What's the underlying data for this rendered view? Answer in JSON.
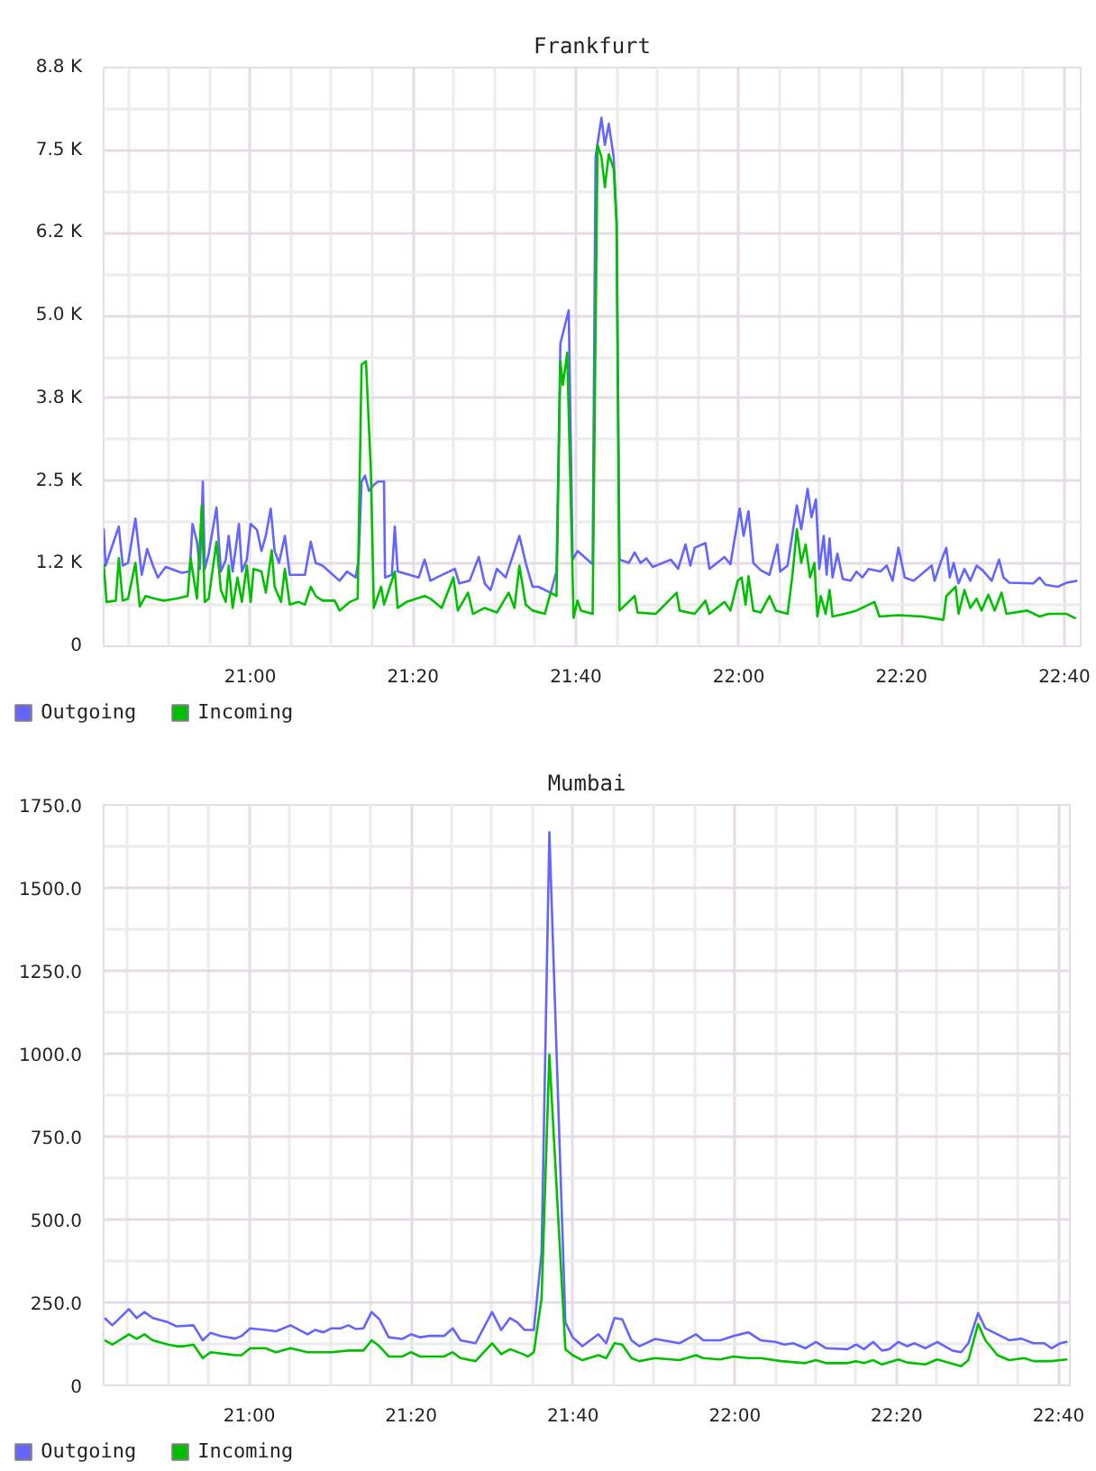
{
  "chart_data": [
    {
      "type": "line",
      "title": "Frankfurt",
      "xlim": [
        20.7,
        22.7
      ],
      "ylim": [
        0,
        8750
      ],
      "xticks": [
        {
          "value": 20.75,
          "label": null
        },
        {
          "value": 20.8333,
          "label": null
        },
        {
          "value": 20.9167,
          "label": null
        },
        {
          "value": 21,
          "label": "21:00"
        },
        {
          "value": 21.0833,
          "label": null
        },
        {
          "value": 21.1667,
          "label": null
        },
        {
          "value": 21.25,
          "label": null
        },
        {
          "value": 21.3333,
          "label": "21:20"
        },
        {
          "value": 21.4167,
          "label": null
        },
        {
          "value": 21.5,
          "label": null
        },
        {
          "value": 21.5833,
          "label": null
        },
        {
          "value": 21.6667,
          "label": "21:40"
        },
        {
          "value": 21.75,
          "label": null
        },
        {
          "value": 21.8333,
          "label": null
        },
        {
          "value": 21.9167,
          "label": null
        },
        {
          "value": 22,
          "label": "22:00"
        },
        {
          "value": 22.0833,
          "label": null
        },
        {
          "value": 22.1667,
          "label": null
        },
        {
          "value": 22.25,
          "label": null
        },
        {
          "value": 22.3333,
          "label": "22:20"
        },
        {
          "value": 22.4167,
          "label": null
        },
        {
          "value": 22.5,
          "label": null
        },
        {
          "value": 22.5833,
          "label": null
        },
        {
          "value": 22.6667,
          "label": "22:40"
        }
      ],
      "yticks": [
        0,
        {
          "value": 625,
          "label": null
        },
        {
          "value": 1250,
          "label": "1.2 K"
        },
        {
          "value": 1875,
          "label": null
        },
        {
          "value": 2500,
          "label": "2.5 K"
        },
        {
          "value": 3125,
          "label": null
        },
        {
          "value": 3750,
          "label": "3.8 K"
        },
        {
          "value": 4375,
          "label": null
        },
        {
          "value": 5000,
          "label": "5.0 K"
        },
        {
          "value": 5625,
          "label": null
        },
        {
          "value": 6250,
          "label": "6.2 K"
        },
        {
          "value": 6875,
          "label": null
        },
        {
          "value": 7500,
          "label": "7.5 K"
        },
        {
          "value": 8125,
          "label": null
        },
        {
          "value": 8750,
          "label": "8.8 K"
        }
      ],
      "grid": true,
      "legend": "bottom left",
      "series": [
        {
          "name": "Outgoing",
          "color": "#6464ff",
          "x": [
            20.7,
            20.704,
            20.731,
            20.739,
            20.75,
            20.765,
            20.778,
            20.789,
            20.801,
            20.811,
            20.827,
            20.86,
            20.876,
            20.882,
            20.891,
            20.897,
            20.903,
            20.907,
            20.915,
            20.931,
            20.94,
            20.95,
            20.956,
            20.964,
            20.977,
            20.983,
            20.993,
            21.001,
            21.014,
            21.023,
            21.032,
            21.042,
            21.05,
            21.059,
            21.071,
            21.081,
            21.112,
            21.124,
            21.134,
            21.148,
            21.183,
            21.198,
            21.216,
            21.222,
            21.228,
            21.235,
            21.243,
            21.253,
            21.262,
            21.274,
            21.276,
            21.29,
            21.296,
            21.302,
            21.345,
            21.357,
            21.369,
            21.382,
            21.419,
            21.428,
            21.449,
            21.468,
            21.48,
            21.492,
            21.505,
            21.523,
            21.551,
            21.564,
            21.578,
            21.59,
            21.615,
            21.627,
            21.635,
            21.652,
            21.66,
            21.67,
            21.701,
            21.707,
            21.719,
            21.726,
            21.734,
            21.744,
            21.75,
            21.756,
            21.775,
            21.787,
            21.799,
            21.811,
            21.824,
            21.861,
            21.876,
            21.891,
            21.901,
            21.91,
            21.932,
            21.94,
            21.971,
            21.983,
            22.002,
            22.01,
            22.02,
            22.03,
            22.045,
            22.063,
            22.079,
            22.085,
            22.1,
            22.119,
            22.128,
            22.141,
            22.149,
            22.158,
            22.165,
            22.174,
            22.18,
            22.186,
            22.192,
            22.202,
            22.213,
            22.229,
            22.241,
            22.253,
            22.266,
            22.29,
            22.303,
            22.315,
            22.327,
            22.34,
            22.358,
            22.395,
            22.401,
            22.413,
            22.425,
            22.432,
            22.44,
            22.45,
            22.462,
            22.474,
            22.487,
            22.499,
            22.518,
            22.533,
            22.542,
            22.554,
            22.603,
            22.616,
            22.628,
            22.653,
            22.671,
            22.693
          ],
          "values": [
            1780,
            1220,
            1810,
            1220,
            1260,
            1930,
            1080,
            1470,
            1220,
            1040,
            1200,
            1110,
            1130,
            1850,
            1580,
            1170,
            2490,
            1170,
            1400,
            2100,
            1130,
            1310,
            1670,
            1130,
            1850,
            1130,
            1310,
            1850,
            1760,
            1440,
            1670,
            2080,
            1440,
            1260,
            1670,
            1080,
            1080,
            1580,
            1260,
            1220,
            990,
            1130,
            1040,
            1310,
            2490,
            2580,
            2350,
            2440,
            2490,
            2490,
            1040,
            1080,
            1810,
            1130,
            1040,
            1310,
            990,
            1040,
            1170,
            950,
            990,
            1350,
            950,
            850,
            1170,
            1040,
            1670,
            1260,
            900,
            900,
            810,
            1130,
            4580,
            5080,
            1310,
            1440,
            1240,
            7400,
            7990,
            7580,
            7900,
            7400,
            6400,
            1310,
            1260,
            1420,
            1260,
            1330,
            1200,
            1310,
            1170,
            1540,
            1220,
            1490,
            1560,
            1170,
            1350,
            1240,
            2080,
            1670,
            2040,
            1260,
            1150,
            1080,
            1540,
            1130,
            1220,
            2130,
            1770,
            2380,
            1950,
            2220,
            1170,
            1670,
            1080,
            1630,
            1040,
            1400,
            1020,
            990,
            1130,
            1040,
            1170,
            1130,
            1220,
            990,
            1490,
            1040,
            990,
            1220,
            990,
            1260,
            1490,
            1040,
            1260,
            950,
            1170,
            990,
            1220,
            1150,
            990,
            1310,
            1040,
            960,
            950,
            1040,
            930,
            900,
            960,
            990
          ]
        },
        {
          "name": "Incoming",
          "color": "#00c000",
          "x": [
            20.7,
            20.706,
            20.725,
            20.731,
            20.739,
            20.75,
            20.765,
            20.774,
            20.786,
            20.805,
            20.823,
            20.848,
            20.872,
            20.878,
            20.891,
            20.901,
            20.907,
            20.915,
            20.931,
            20.94,
            20.95,
            20.956,
            20.964,
            20.974,
            20.983,
            20.993,
            21.001,
            21.007,
            21.023,
            21.032,
            21.044,
            21.05,
            21.063,
            21.071,
            21.081,
            21.099,
            21.112,
            21.124,
            21.134,
            21.148,
            21.173,
            21.183,
            21.204,
            21.22,
            21.228,
            21.237,
            21.247,
            21.253,
            21.268,
            21.274,
            21.296,
            21.302,
            21.32,
            21.357,
            21.369,
            21.392,
            21.416,
            21.425,
            21.446,
            21.456,
            21.48,
            21.505,
            21.529,
            21.541,
            21.551,
            21.564,
            21.578,
            21.603,
            21.615,
            21.627,
            21.635,
            21.64,
            21.649,
            21.662,
            21.67,
            21.677,
            21.701,
            21.711,
            21.719,
            21.726,
            21.734,
            21.744,
            21.75,
            21.756,
            21.787,
            21.793,
            21.83,
            21.873,
            21.879,
            21.91,
            21.932,
            21.94,
            21.971,
            21.983,
            21.998,
            22.006,
            22.014,
            22.02,
            22.03,
            22.045,
            22.063,
            22.076,
            22.1,
            22.11,
            22.119,
            22.128,
            22.137,
            22.146,
            22.155,
            22.161,
            22.168,
            22.178,
            22.186,
            22.192,
            22.217,
            22.241,
            22.278,
            22.288,
            22.327,
            22.376,
            22.419,
            22.425,
            22.444,
            22.45,
            22.462,
            22.474,
            22.487,
            22.497,
            22.511,
            22.524,
            22.538,
            22.548,
            22.591,
            22.616,
            22.634,
            22.671,
            22.69
          ],
          "values": [
            1250,
            670,
            690,
            1330,
            690,
            720,
            1260,
            600,
            760,
            720,
            690,
            720,
            760,
            1330,
            720,
            2130,
            670,
            720,
            1580,
            850,
            670,
            1220,
            580,
            1040,
            670,
            1220,
            670,
            1170,
            1130,
            810,
            1450,
            900,
            670,
            1170,
            630,
            670,
            630,
            900,
            760,
            690,
            690,
            540,
            670,
            720,
            4260,
            4310,
            2670,
            580,
            900,
            630,
            1130,
            580,
            670,
            760,
            720,
            580,
            1040,
            540,
            810,
            490,
            580,
            510,
            810,
            580,
            1220,
            630,
            540,
            490,
            810,
            760,
            4310,
            3950,
            4440,
            430,
            690,
            540,
            490,
            7580,
            7400,
            6940,
            7440,
            7220,
            6400,
            540,
            760,
            510,
            490,
            810,
            540,
            490,
            690,
            490,
            670,
            540,
            990,
            1040,
            630,
            1060,
            540,
            510,
            760,
            540,
            490,
            1080,
            1770,
            1260,
            1540,
            1040,
            1260,
            450,
            760,
            490,
            850,
            450,
            490,
            540,
            670,
            450,
            470,
            450,
            400,
            760,
            900,
            490,
            850,
            580,
            720,
            540,
            780,
            540,
            810,
            490,
            540,
            450,
            490,
            490,
            420
          ]
        }
      ]
    },
    {
      "type": "line",
      "title": "Mumbai",
      "xlim": [
        20.7,
        22.69
      ],
      "ylim": [
        0,
        1750
      ],
      "xticks": [
        {
          "value": 20.75,
          "label": null
        },
        {
          "value": 20.8333,
          "label": null
        },
        {
          "value": 20.9167,
          "label": null
        },
        {
          "value": 21,
          "label": "21:00"
        },
        {
          "value": 21.0833,
          "label": null
        },
        {
          "value": 21.1667,
          "label": null
        },
        {
          "value": 21.25,
          "label": null
        },
        {
          "value": 21.3333,
          "label": "21:20"
        },
        {
          "value": 21.4167,
          "label": null
        },
        {
          "value": 21.5,
          "label": null
        },
        {
          "value": 21.5833,
          "label": null
        },
        {
          "value": 21.6667,
          "label": "21:40"
        },
        {
          "value": 21.75,
          "label": null
        },
        {
          "value": 21.8333,
          "label": null
        },
        {
          "value": 21.9167,
          "label": null
        },
        {
          "value": 22,
          "label": "22:00"
        },
        {
          "value": 22.0833,
          "label": null
        },
        {
          "value": 22.1667,
          "label": null
        },
        {
          "value": 22.25,
          "label": null
        },
        {
          "value": 22.3333,
          "label": "22:20"
        },
        {
          "value": 22.4167,
          "label": null
        },
        {
          "value": 22.5,
          "label": null
        },
        {
          "value": 22.5833,
          "label": null
        },
        {
          "value": 22.6667,
          "label": "22:40"
        }
      ],
      "yticks": [
        0,
        {
          "value": 125,
          "label": null
        },
        {
          "value": 250,
          "label": "250.0"
        },
        {
          "value": 375,
          "label": null
        },
        {
          "value": 500,
          "label": "500.0"
        },
        {
          "value": 625,
          "label": null
        },
        {
          "value": 750,
          "label": "750.0"
        },
        {
          "value": 875,
          "label": null
        },
        {
          "value": 1000,
          "label": "1000.0"
        },
        {
          "value": 1125,
          "label": null
        },
        {
          "value": 1250,
          "label": "1250.0"
        },
        {
          "value": 1375,
          "label": null
        },
        {
          "value": 1500,
          "label": "1500.0"
        },
        {
          "value": 1625,
          "label": null
        },
        {
          "value": 1750,
          "label": "1750.0"
        }
      ],
      "grid": true,
      "legend": "bottom left",
      "series": [
        {
          "name": "Outgoing",
          "color": "#6464ff",
          "x": [
            20.702,
            20.718,
            20.752,
            20.768,
            20.784,
            20.801,
            20.833,
            20.85,
            20.885,
            20.904,
            20.92,
            20.941,
            20.971,
            20.984,
            21.002,
            21.033,
            21.055,
            21.085,
            21.12,
            21.135,
            21.153,
            21.169,
            21.188,
            21.204,
            21.219,
            21.235,
            21.252,
            21.268,
            21.287,
            21.315,
            21.333,
            21.352,
            21.369,
            21.401,
            21.419,
            21.435,
            21.466,
            21.5,
            21.519,
            21.537,
            21.552,
            21.567,
            21.586,
            21.602,
            21.618,
            21.651,
            21.666,
            21.686,
            21.719,
            21.735,
            21.752,
            21.768,
            21.787,
            21.803,
            21.836,
            21.886,
            21.92,
            21.935,
            21.97,
            21.997,
            22.028,
            22.053,
            22.083,
            22.102,
            22.12,
            22.145,
            22.167,
            22.188,
            22.232,
            22.25,
            22.266,
            22.285,
            22.303,
            22.318,
            22.337,
            22.355,
            22.37,
            22.392,
            22.417,
            22.448,
            22.466,
            22.481,
            22.501,
            22.516,
            22.541,
            22.565,
            22.59,
            22.615,
            22.637,
            22.652,
            22.67,
            22.685
          ],
          "values": [
            203,
            181,
            230,
            203,
            221,
            203,
            190,
            178,
            181,
            136,
            158,
            149,
            141,
            149,
            172,
            167,
            163,
            181,
            154,
            167,
            160,
            172,
            172,
            181,
            170,
            172,
            221,
            199,
            145,
            140,
            154,
            145,
            149,
            149,
            172,
            136,
            127,
            221,
            167,
            203,
            190,
            167,
            167,
            400,
            1668,
            190,
            145,
            118,
            154,
            127,
            203,
            199,
            136,
            118,
            140,
            127,
            154,
            136,
            136,
            149,
            160,
            136,
            131,
            123,
            127,
            112,
            131,
            112,
            109,
            123,
            109,
            131,
            105,
            109,
            131,
            118,
            127,
            112,
            131,
            105,
            100,
            127,
            218,
            172,
            154,
            136,
            141,
            127,
            127,
            112,
            127,
            132
          ]
        },
        {
          "name": "Incoming",
          "color": "#00c000",
          "x": [
            20.702,
            20.718,
            20.752,
            20.768,
            20.784,
            20.801,
            20.833,
            20.85,
            20.866,
            20.885,
            20.904,
            20.92,
            20.971,
            20.984,
            21.002,
            21.033,
            21.055,
            21.085,
            21.12,
            21.169,
            21.204,
            21.235,
            21.252,
            21.268,
            21.287,
            21.315,
            21.333,
            21.352,
            21.401,
            21.419,
            21.435,
            21.466,
            21.5,
            21.519,
            21.537,
            21.564,
            21.574,
            21.586,
            21.602,
            21.618,
            21.651,
            21.666,
            21.686,
            21.719,
            21.735,
            21.752,
            21.768,
            21.787,
            21.803,
            21.836,
            21.886,
            21.92,
            21.935,
            21.97,
            21.997,
            22.028,
            22.053,
            22.096,
            22.145,
            22.167,
            22.188,
            22.232,
            22.25,
            22.266,
            22.285,
            22.303,
            22.337,
            22.355,
            22.392,
            22.417,
            22.466,
            22.481,
            22.501,
            22.516,
            22.541,
            22.565,
            22.596,
            22.615,
            22.652,
            22.67,
            22.685
          ],
          "values": [
            136,
            123,
            154,
            140,
            154,
            136,
            123,
            118,
            118,
            123,
            82,
            100,
            91,
            91,
            112,
            112,
            100,
            112,
            100,
            100,
            105,
            105,
            136,
            118,
            87,
            87,
            100,
            87,
            87,
            100,
            82,
            73,
            127,
            94,
            109,
            94,
            87,
            100,
            263,
            997,
            109,
            91,
            76,
            91,
            82,
            127,
            123,
            82,
            73,
            82,
            76,
            91,
            82,
            78,
            87,
            82,
            82,
            73,
            67,
            76,
            67,
            67,
            73,
            67,
            76,
            63,
            78,
            69,
            63,
            78,
            58,
            76,
            185,
            136,
            91,
            76,
            82,
            73,
            73,
            76,
            78
          ]
        }
      ]
    }
  ]
}
